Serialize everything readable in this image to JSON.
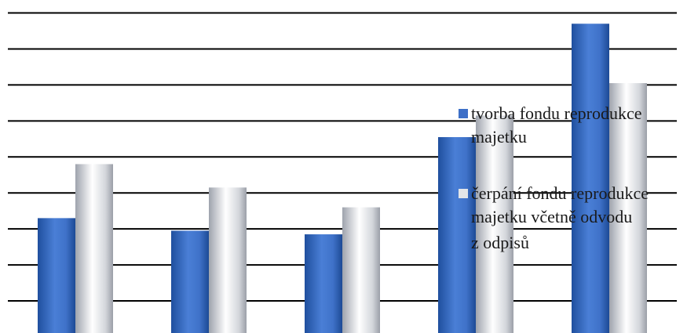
{
  "chart_data": {
    "type": "bar",
    "categories": [
      "",
      "",
      "",
      "",
      ""
    ],
    "ylim": [
      0,
      9
    ],
    "grid": true,
    "legend_placement": "right",
    "series": [
      {
        "name": "tvorba fondu reprodukce majetku",
        "legend_lines": [
          "tvorba fondu reprodukce",
          "majetku"
        ],
        "color": "#3d6fc7",
        "values": [
          3.3,
          2.95,
          2.85,
          5.55,
          8.7
        ]
      },
      {
        "name": "čerpání fondu reprodukce majetku včetně odvodu z odpisů",
        "legend_lines": [
          "čerpání fondu reprodukce",
          "majetku včetně odvodu",
          "z odpisů"
        ],
        "color": "#c9ccd2",
        "values": [
          4.8,
          4.15,
          3.6,
          6.15,
          7.05
        ]
      }
    ]
  }
}
